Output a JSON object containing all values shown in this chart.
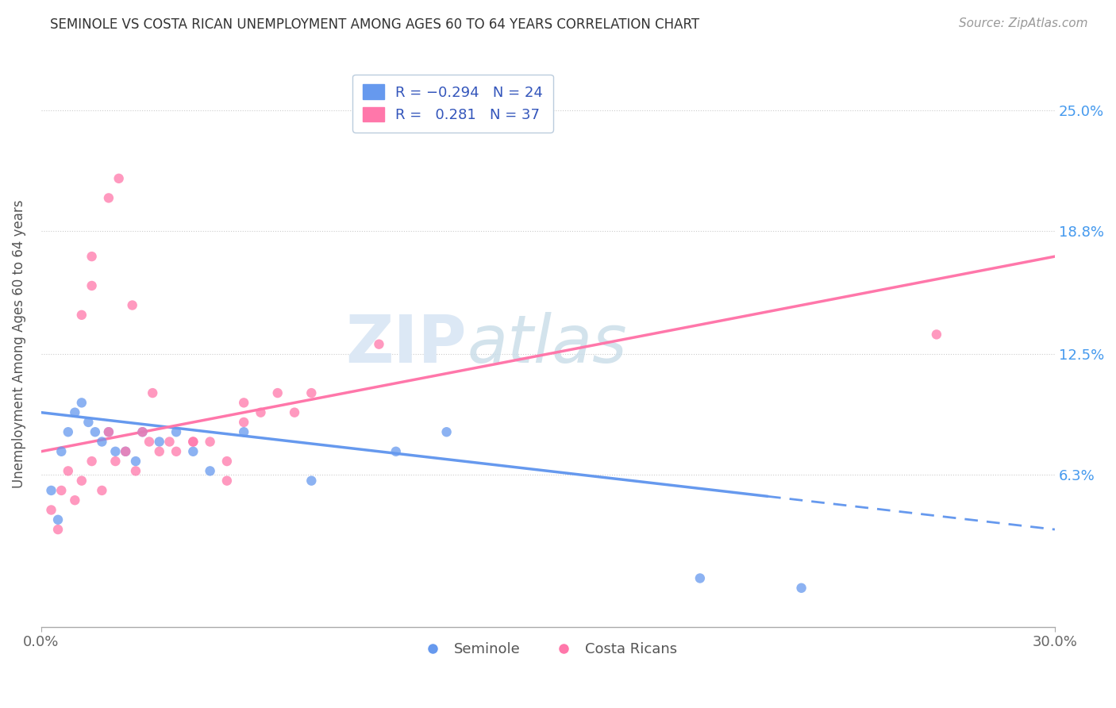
{
  "title": "SEMINOLE VS COSTA RICAN UNEMPLOYMENT AMONG AGES 60 TO 64 YEARS CORRELATION CHART",
  "source": "Source: ZipAtlas.com",
  "ylabel": "Unemployment Among Ages 60 to 64 years",
  "ytick_labels": [
    "6.3%",
    "12.5%",
    "18.8%",
    "25.0%"
  ],
  "ytick_values": [
    6.3,
    12.5,
    18.8,
    25.0
  ],
  "xlim": [
    0.0,
    30.0
  ],
  "ylim": [
    -1.5,
    27.5
  ],
  "seminole_R": -0.294,
  "seminole_N": 24,
  "costaricans_R": 0.281,
  "costaricans_N": 37,
  "seminole_color": "#6699ee",
  "costarican_color": "#ff77aa",
  "seminole_x": [
    0.3,
    0.5,
    0.6,
    0.8,
    1.0,
    1.2,
    1.4,
    1.6,
    1.8,
    2.0,
    2.2,
    2.5,
    2.8,
    3.0,
    3.5,
    4.0,
    4.5,
    5.0,
    6.0,
    8.0,
    10.5,
    12.0,
    19.5,
    22.5
  ],
  "seminole_y": [
    5.5,
    4.0,
    7.5,
    8.5,
    9.5,
    10.0,
    9.0,
    8.5,
    8.0,
    8.5,
    7.5,
    7.5,
    7.0,
    8.5,
    8.0,
    8.5,
    7.5,
    6.5,
    8.5,
    6.0,
    7.5,
    8.5,
    1.0,
    0.5
  ],
  "seminole_solid_end": 21.5,
  "costarican_x": [
    0.3,
    0.5,
    0.6,
    0.8,
    1.0,
    1.2,
    1.5,
    1.8,
    2.0,
    2.2,
    2.5,
    2.8,
    3.0,
    3.2,
    3.5,
    4.0,
    4.5,
    5.0,
    5.5,
    6.0,
    6.5,
    7.0,
    7.5,
    8.0,
    1.5,
    2.0,
    2.3,
    2.7,
    3.3,
    3.8,
    4.5,
    5.5,
    6.0,
    10.0,
    1.2,
    1.5,
    26.5
  ],
  "costarican_y": [
    4.5,
    3.5,
    5.5,
    6.5,
    5.0,
    6.0,
    7.0,
    5.5,
    8.5,
    7.0,
    7.5,
    6.5,
    8.5,
    8.0,
    7.5,
    7.5,
    8.0,
    8.0,
    7.0,
    10.0,
    9.5,
    10.5,
    9.5,
    10.5,
    17.5,
    20.5,
    21.5,
    15.0,
    10.5,
    8.0,
    8.0,
    6.0,
    9.0,
    13.0,
    14.5,
    16.0,
    13.5
  ],
  "seminole_line_x": [
    0.0,
    30.0
  ],
  "seminole_line_y": [
    9.5,
    3.5
  ],
  "costarican_line_x": [
    0.0,
    30.0
  ],
  "costarican_line_y": [
    7.5,
    17.5
  ]
}
